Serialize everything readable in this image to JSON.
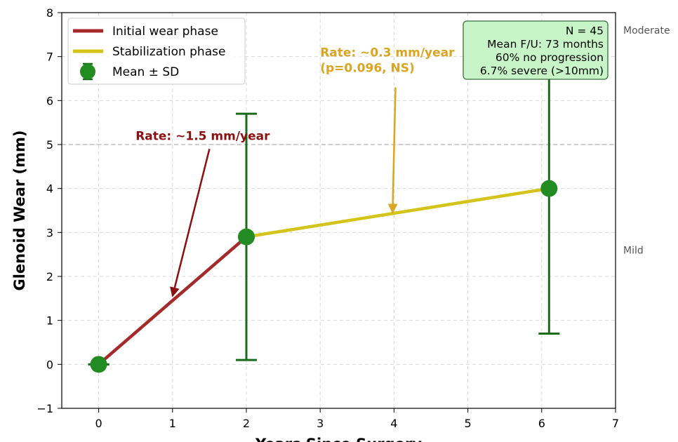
{
  "chart_data": {
    "type": "line",
    "xlabel": "Years Since Surgery",
    "ylabel": "Glenoid Wear (mm)",
    "xlim": [
      -0.5,
      7
    ],
    "ylim": [
      -1,
      8
    ],
    "x_ticks": [
      0,
      1,
      2,
      3,
      4,
      5,
      6,
      7
    ],
    "y_ticks": [
      -1,
      0,
      1,
      2,
      3,
      4,
      5,
      6,
      7,
      8
    ],
    "grid": true,
    "reference_line": {
      "y": 5
    },
    "side_labels": [
      {
        "text": "Moderate",
        "y": 7.6
      },
      {
        "text": "Mild",
        "y": 2.6
      }
    ],
    "series": [
      {
        "name": "Initial wear phase",
        "color": "#a52a2a",
        "x": [
          0,
          2
        ],
        "y": [
          0,
          2.9
        ]
      },
      {
        "name": "Stabilization phase",
        "color": "#d4c41a",
        "x": [
          2,
          6.1
        ],
        "y": [
          2.9,
          4.0
        ]
      }
    ],
    "points": {
      "name": "Mean ± SD",
      "color": "#228b22",
      "errcolor": "#1a6b1a",
      "x": [
        0,
        2,
        6.1
      ],
      "y": [
        0,
        2.9,
        4.0
      ],
      "sd": [
        0,
        2.8,
        3.3
      ]
    },
    "legend": {
      "position": "top-left",
      "entries": [
        "Initial wear phase",
        "Stabilization phase",
        "Mean ± SD"
      ]
    },
    "annotations": [
      {
        "lines": [
          "Rate: ~1.5 mm/year"
        ],
        "color": "#8b1010",
        "text_at": [
          0.5,
          5.1
        ],
        "arrow_from": [
          1.5,
          4.9
        ],
        "arrow_to": [
          1.0,
          1.55
        ]
      },
      {
        "lines": [
          "Rate: ~0.3 mm/year",
          "(p=0.096, NS)"
        ],
        "color": "#daa520",
        "text_at": [
          3.0,
          7.0
        ],
        "arrow_from": [
          4.02,
          6.3
        ],
        "arrow_to": [
          3.98,
          3.45
        ]
      }
    ],
    "info_box": {
      "lines": [
        "N = 45",
        "Mean F/U: 73 months",
        "60% no progression",
        "6.7% severe (>10mm)"
      ],
      "bg": "#c8f5c8",
      "border": "#3a6e3a",
      "position": "top-right"
    }
  }
}
